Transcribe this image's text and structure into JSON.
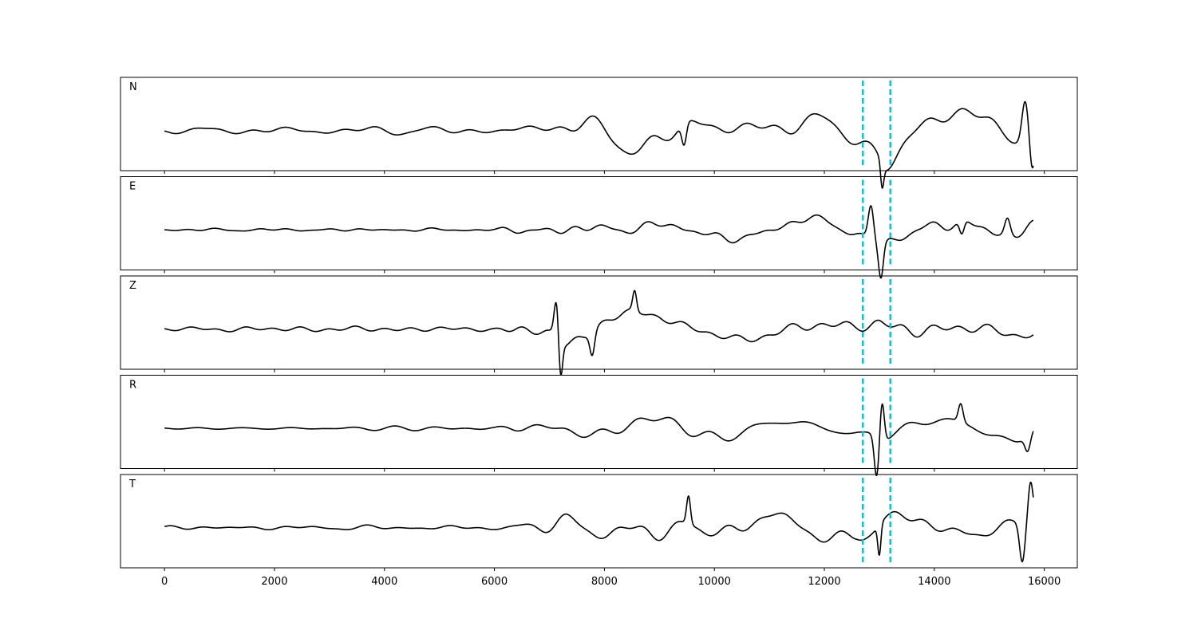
{
  "chart_data": {
    "type": "line",
    "xlim": [
      -800,
      16600
    ],
    "x_ticks": [
      0,
      2000,
      4000,
      6000,
      8000,
      10000,
      12000,
      14000,
      16000
    ],
    "x_tick_labels": [
      "0",
      "2000",
      "4000",
      "6000",
      "8000",
      "10000",
      "12000",
      "14000",
      "16000"
    ],
    "y_ticks_visible": false,
    "grid": false,
    "shared_x": true,
    "colors": {
      "trace": "#000000",
      "marker": "#17becf"
    },
    "vertical_markers": [
      12700,
      13200
    ],
    "n_samples": 15800,
    "panels": [
      {
        "label": "N",
        "seed": 11,
        "envelope": [
          [
            0,
            0.18
          ],
          [
            2600,
            0.22
          ],
          [
            6000,
            0.2
          ],
          [
            6800,
            0.35
          ],
          [
            7300,
            0.55
          ],
          [
            9000,
            0.65
          ],
          [
            12700,
            0.55
          ],
          [
            13000,
            0.75
          ],
          [
            13100,
            0.95
          ],
          [
            14500,
            0.7
          ],
          [
            15300,
            0.55
          ],
          [
            15800,
            0.6
          ]
        ],
        "features": [
          {
            "x": 9450,
            "amp": -0.55,
            "width": 60
          },
          {
            "x": 13050,
            "amp": -0.6,
            "width": 40
          },
          {
            "x": 15650,
            "amp": 1.0,
            "width": 80
          },
          {
            "x": 15780,
            "amp": -0.75,
            "width": 60
          }
        ]
      },
      {
        "label": "E",
        "seed": 23,
        "envelope": [
          [
            0,
            0.09
          ],
          [
            6000,
            0.1
          ],
          [
            6400,
            0.25
          ],
          [
            7200,
            0.35
          ],
          [
            9000,
            0.35
          ],
          [
            12600,
            0.3
          ],
          [
            12900,
            0.5
          ],
          [
            13300,
            0.45
          ],
          [
            14200,
            0.45
          ],
          [
            15000,
            0.55
          ],
          [
            15800,
            0.5
          ]
        ],
        "features": [
          {
            "x": 12850,
            "amp": 0.9,
            "width": 70
          },
          {
            "x": 13030,
            "amp": -0.85,
            "width": 60
          },
          {
            "x": 14500,
            "amp": -0.35,
            "width": 60
          },
          {
            "x": 15330,
            "amp": 0.4,
            "width": 70
          }
        ]
      },
      {
        "label": "Z",
        "seed": 37,
        "envelope": [
          [
            0,
            0.12
          ],
          [
            6000,
            0.14
          ],
          [
            6400,
            0.45
          ],
          [
            7000,
            0.6
          ],
          [
            7300,
            0.9
          ],
          [
            7900,
            0.8
          ],
          [
            8700,
            0.55
          ],
          [
            10000,
            0.35
          ],
          [
            12600,
            0.35
          ],
          [
            13000,
            0.5
          ],
          [
            14000,
            0.4
          ],
          [
            15800,
            0.38
          ]
        ],
        "features": [
          {
            "x": 7130,
            "amp": 0.95,
            "width": 60
          },
          {
            "x": 7200,
            "amp": -1.0,
            "width": 50
          },
          {
            "x": 7780,
            "amp": -0.55,
            "width": 60
          },
          {
            "x": 8550,
            "amp": 0.5,
            "width": 50
          }
        ]
      },
      {
        "label": "R",
        "seed": 51,
        "envelope": [
          [
            0,
            0.08
          ],
          [
            6000,
            0.1
          ],
          [
            6400,
            0.25
          ],
          [
            7200,
            0.33
          ],
          [
            9000,
            0.33
          ],
          [
            12600,
            0.32
          ],
          [
            13000,
            0.55
          ],
          [
            13400,
            0.4
          ],
          [
            15800,
            0.42
          ]
        ],
        "features": [
          {
            "x": 12950,
            "amp": -1.0,
            "width": 60
          },
          {
            "x": 13050,
            "amp": 0.95,
            "width": 55
          },
          {
            "x": 14480,
            "amp": 0.45,
            "width": 60
          },
          {
            "x": 15700,
            "amp": -0.4,
            "width": 70
          }
        ]
      },
      {
        "label": "T",
        "seed": 67,
        "envelope": [
          [
            0,
            0.15
          ],
          [
            6000,
            0.15
          ],
          [
            6500,
            0.25
          ],
          [
            7300,
            0.55
          ],
          [
            8800,
            0.7
          ],
          [
            10000,
            0.55
          ],
          [
            12600,
            0.5
          ],
          [
            12900,
            0.75
          ],
          [
            13200,
            0.6
          ],
          [
            14500,
            0.55
          ],
          [
            15500,
            0.5
          ],
          [
            15800,
            0.7
          ]
        ],
        "features": [
          {
            "x": 9530,
            "amp": 0.7,
            "width": 50
          },
          {
            "x": 13000,
            "amp": -0.75,
            "width": 40
          },
          {
            "x": 15600,
            "amp": -1.0,
            "width": 70
          },
          {
            "x": 15750,
            "amp": 0.85,
            "width": 60
          }
        ]
      }
    ]
  }
}
